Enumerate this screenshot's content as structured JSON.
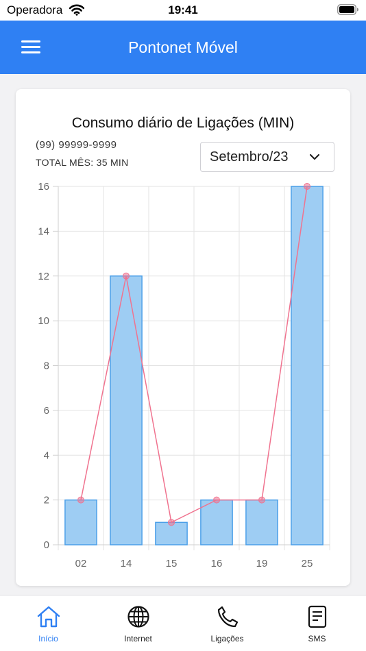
{
  "status_bar": {
    "carrier": "Operadora",
    "time": "19:41"
  },
  "header": {
    "title": "Pontonet Móvel",
    "menu_icon": "hamburger-menu-icon"
  },
  "card": {
    "title": "Consumo diário de Ligações (MIN)",
    "phone_number": "(99) 99999-9999",
    "month_total": "TOTAL MÊS: 35 MIN",
    "month_select": {
      "value": "Setembro/23"
    }
  },
  "chart_data": {
    "type": "bar",
    "categories": [
      "02",
      "14",
      "15",
      "16",
      "19",
      "25"
    ],
    "series": [
      {
        "type": "bar",
        "values": [
          2,
          12,
          1,
          2,
          2,
          16
        ],
        "color": "#9ecdf3",
        "border_color": "#4a9fe8"
      },
      {
        "type": "line",
        "values": [
          2,
          12,
          1,
          2,
          2,
          16
        ],
        "color": "#f0738f"
      }
    ],
    "ylim": [
      0,
      16
    ],
    "yticks": [
      0,
      2,
      4,
      6,
      8,
      10,
      12,
      14,
      16
    ],
    "grid": true
  },
  "tabs": [
    {
      "label": "Início",
      "icon": "home-icon",
      "active": true
    },
    {
      "label": "Internet",
      "icon": "globe-icon",
      "active": false
    },
    {
      "label": "Ligações",
      "icon": "phone-icon",
      "active": false
    },
    {
      "label": "SMS",
      "icon": "sms-document-icon",
      "active": false
    }
  ],
  "colors": {
    "primary": "#2f80f3",
    "bar_fill": "#9ecdf3",
    "line": "#f0738f"
  }
}
